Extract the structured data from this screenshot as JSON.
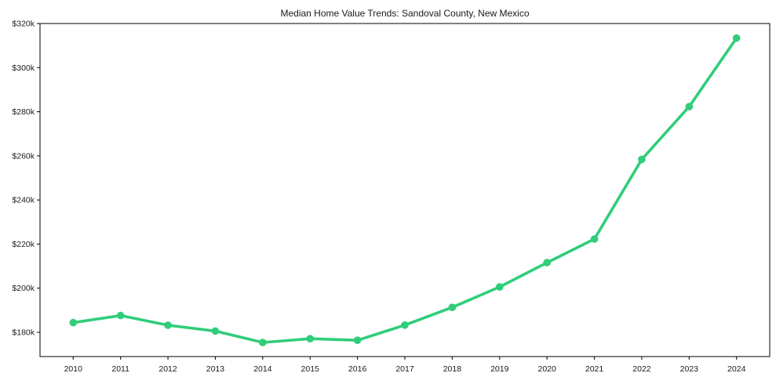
{
  "chart_data": {
    "type": "line",
    "title": "Median Home Value Trends: Sandoval County, New Mexico",
    "xlabel": "",
    "ylabel": "",
    "x": [
      2010,
      2011,
      2012,
      2013,
      2014,
      2015,
      2016,
      2017,
      2018,
      2019,
      2020,
      2021,
      2022,
      2023,
      2024
    ],
    "xtick_labels": [
      "2010",
      "2011",
      "2012",
      "2013",
      "2014",
      "2015",
      "2016",
      "2017",
      "2018",
      "2019",
      "2020",
      "2021",
      "2022",
      "2023",
      "2024"
    ],
    "series": [
      {
        "name": "Median Home Value",
        "values": [
          184400,
          187600,
          183200,
          180600,
          175400,
          177100,
          176400,
          183300,
          191300,
          200600,
          211600,
          222300,
          258400,
          282300,
          313400
        ]
      }
    ],
    "ytick_values": [
      180000,
      200000,
      220000,
      240000,
      260000,
      280000,
      300000,
      320000
    ],
    "ytick_labels": [
      "$180k",
      "$200k",
      "$220k",
      "$240k",
      "$260k",
      "$280k",
      "$300k",
      "$320k"
    ],
    "ylim": [
      169000,
      320000
    ],
    "xlim": [
      2009.3,
      2024.7
    ],
    "grid": false,
    "legend": "none",
    "line_color": "#30cd7a",
    "marker": "circle",
    "axis_color": "#000000",
    "text_color": "#1a1a1a",
    "background_color": "#ffffff"
  }
}
